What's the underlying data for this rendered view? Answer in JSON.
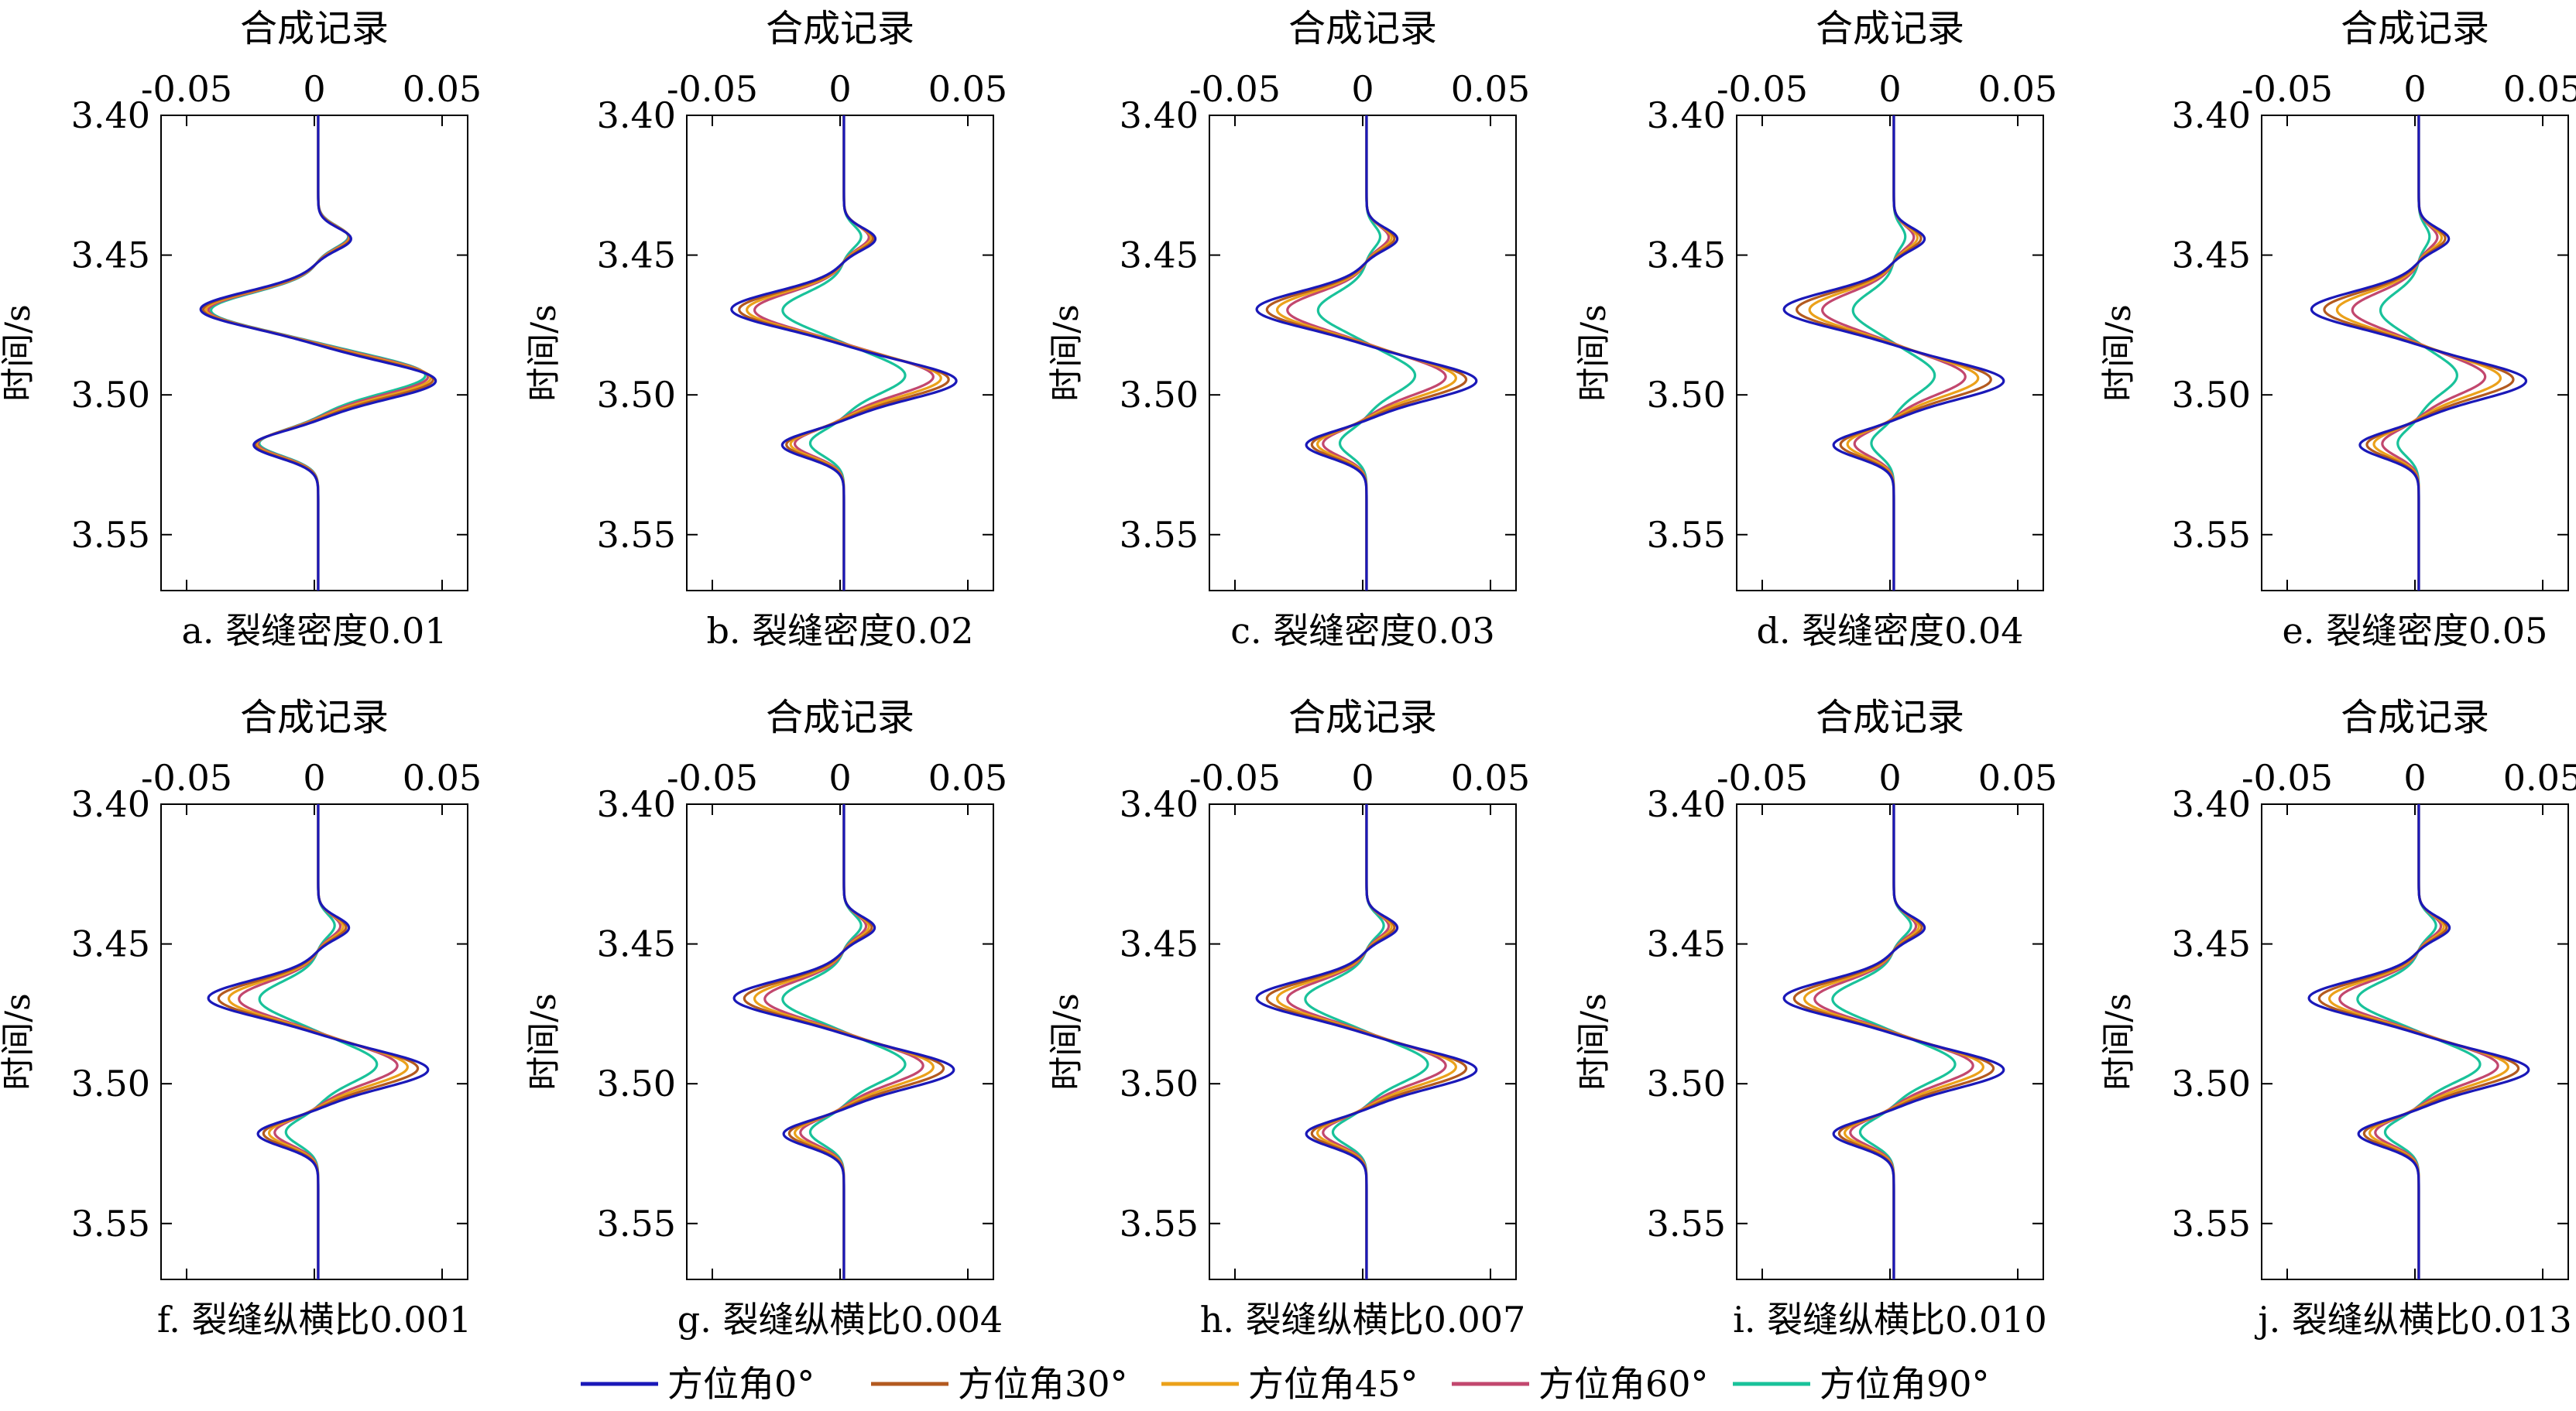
{
  "legend": {
    "placement": "bottom-center",
    "items": [
      {
        "label": "方位角0°",
        "color": "#1a18b8"
      },
      {
        "label": "方位角30°",
        "color": "#b35a1f"
      },
      {
        "label": "方位角45°",
        "color": "#eba11a"
      },
      {
        "label": "方位角60°",
        "color": "#c2476e"
      },
      {
        "label": "方位角90°",
        "color": "#19c29a"
      }
    ]
  },
  "chart_data": [
    {
      "type": "line",
      "title": "合成记录",
      "caption": "a. 裂缝密度0.01",
      "ylabel": "时间/s",
      "xlim": [
        -0.06,
        0.06
      ],
      "ylim": [
        3.57,
        3.4
      ],
      "xticks": [
        "-0.05",
        "0",
        "0.05"
      ],
      "yticks": [
        "3.40",
        "3.45",
        "3.50",
        "3.55"
      ],
      "amplitudes": [
        0.046,
        0.045,
        0.044,
        0.043,
        0.042
      ],
      "shift": [
        0.003,
        0.0025,
        0.002,
        0.0015,
        0.001
      ]
    },
    {
      "type": "line",
      "title": "合成记录",
      "caption": "b. 裂缝密度0.02",
      "ylabel": "时间/s",
      "xlim": [
        -0.06,
        0.06
      ],
      "ylim": [
        3.57,
        3.4
      ],
      "xticks": [
        "-0.05",
        "0",
        "0.05"
      ],
      "yticks": [
        "3.40",
        "3.45",
        "3.50",
        "3.55"
      ],
      "amplitudes": [
        0.044,
        0.041,
        0.038,
        0.035,
        0.024
      ],
      "shift": [
        0.003,
        0.0025,
        0.002,
        0.0015,
        0.001
      ]
    },
    {
      "type": "line",
      "title": "合成记录",
      "caption": "c. 裂缝密度0.03",
      "ylabel": "时间/s",
      "xlim": [
        -0.06,
        0.06
      ],
      "ylim": [
        3.57,
        3.4
      ],
      "xticks": [
        "-0.05",
        "0",
        "0.05"
      ],
      "yticks": [
        "3.40",
        "3.45",
        "3.50",
        "3.55"
      ],
      "amplitudes": [
        0.043,
        0.039,
        0.035,
        0.031,
        0.019
      ],
      "shift": [
        0.003,
        0.0025,
        0.002,
        0.0015,
        0.001
      ]
    },
    {
      "type": "line",
      "title": "合成记录",
      "caption": "d. 裂缝密度0.04",
      "ylabel": "时间/s",
      "xlim": [
        -0.06,
        0.06
      ],
      "ylim": [
        3.57,
        3.4
      ],
      "xticks": [
        "-0.05",
        "0",
        "0.05"
      ],
      "yticks": [
        "3.40",
        "3.45",
        "3.50",
        "3.55"
      ],
      "amplitudes": [
        0.043,
        0.038,
        0.033,
        0.028,
        0.016
      ],
      "shift": [
        0.003,
        0.0025,
        0.002,
        0.0015,
        0.001
      ]
    },
    {
      "type": "line",
      "title": "合成记录",
      "caption": "e. 裂缝密度0.05",
      "ylabel": "时间/s",
      "xlim": [
        -0.06,
        0.06
      ],
      "ylim": [
        3.57,
        3.4
      ],
      "xticks": [
        "-0.05",
        "0",
        "0.05"
      ],
      "yticks": [
        "3.40",
        "3.45",
        "3.50",
        "3.55"
      ],
      "amplitudes": [
        0.042,
        0.037,
        0.032,
        0.026,
        0.015
      ],
      "shift": [
        0.003,
        0.0025,
        0.002,
        0.0015,
        0.001
      ]
    },
    {
      "type": "line",
      "title": "合成记录",
      "caption": "f. 裂缝纵横比0.001",
      "ylabel": "时间/s",
      "xlim": [
        -0.06,
        0.06
      ],
      "ylim": [
        3.57,
        3.4
      ],
      "xticks": [
        "-0.05",
        "0",
        "0.05"
      ],
      "yticks": [
        "3.40",
        "3.45",
        "3.50",
        "3.55"
      ],
      "amplitudes": [
        0.043,
        0.039,
        0.035,
        0.031,
        0.023
      ],
      "shift": [
        0.003,
        0.0025,
        0.002,
        0.0015,
        0.001
      ]
    },
    {
      "type": "line",
      "title": "合成记录",
      "caption": "g. 裂缝纵横比0.004",
      "ylabel": "时间/s",
      "xlim": [
        -0.06,
        0.06
      ],
      "ylim": [
        3.57,
        3.4
      ],
      "xticks": [
        "-0.05",
        "0",
        "0.05"
      ],
      "yticks": [
        "3.40",
        "3.45",
        "3.50",
        "3.55"
      ],
      "amplitudes": [
        0.043,
        0.039,
        0.035,
        0.031,
        0.024
      ],
      "shift": [
        0.003,
        0.0025,
        0.002,
        0.0015,
        0.001
      ]
    },
    {
      "type": "line",
      "title": "合成记录",
      "caption": "h. 裂缝纵横比0.007",
      "ylabel": "时间/s",
      "xlim": [
        -0.06,
        0.06
      ],
      "ylim": [
        3.57,
        3.4
      ],
      "xticks": [
        "-0.05",
        "0",
        "0.05"
      ],
      "yticks": [
        "3.40",
        "3.45",
        "3.50",
        "3.55"
      ],
      "amplitudes": [
        0.043,
        0.039,
        0.035,
        0.031,
        0.024
      ],
      "shift": [
        0.003,
        0.0025,
        0.002,
        0.0015,
        0.001
      ]
    },
    {
      "type": "line",
      "title": "合成记录",
      "caption": "i. 裂缝纵横比0.010",
      "ylabel": "时间/s",
      "xlim": [
        -0.06,
        0.06
      ],
      "ylim": [
        3.57,
        3.4
      ],
      "xticks": [
        "-0.05",
        "0",
        "0.05"
      ],
      "yticks": [
        "3.40",
        "3.45",
        "3.50",
        "3.55"
      ],
      "amplitudes": [
        0.043,
        0.039,
        0.035,
        0.031,
        0.024
      ],
      "shift": [
        0.003,
        0.0025,
        0.002,
        0.0015,
        0.001
      ]
    },
    {
      "type": "line",
      "title": "合成记录",
      "caption": "j. 裂缝纵横比0.013",
      "ylabel": "时间/s",
      "xlim": [
        -0.06,
        0.06
      ],
      "ylim": [
        3.57,
        3.4
      ],
      "xticks": [
        "-0.05",
        "0",
        "0.05"
      ],
      "yticks": [
        "3.40",
        "3.45",
        "3.50",
        "3.55"
      ],
      "amplitudes": [
        0.043,
        0.039,
        0.035,
        0.031,
        0.024
      ],
      "shift": [
        0.003,
        0.0025,
        0.002,
        0.0015,
        0.001
      ]
    }
  ]
}
